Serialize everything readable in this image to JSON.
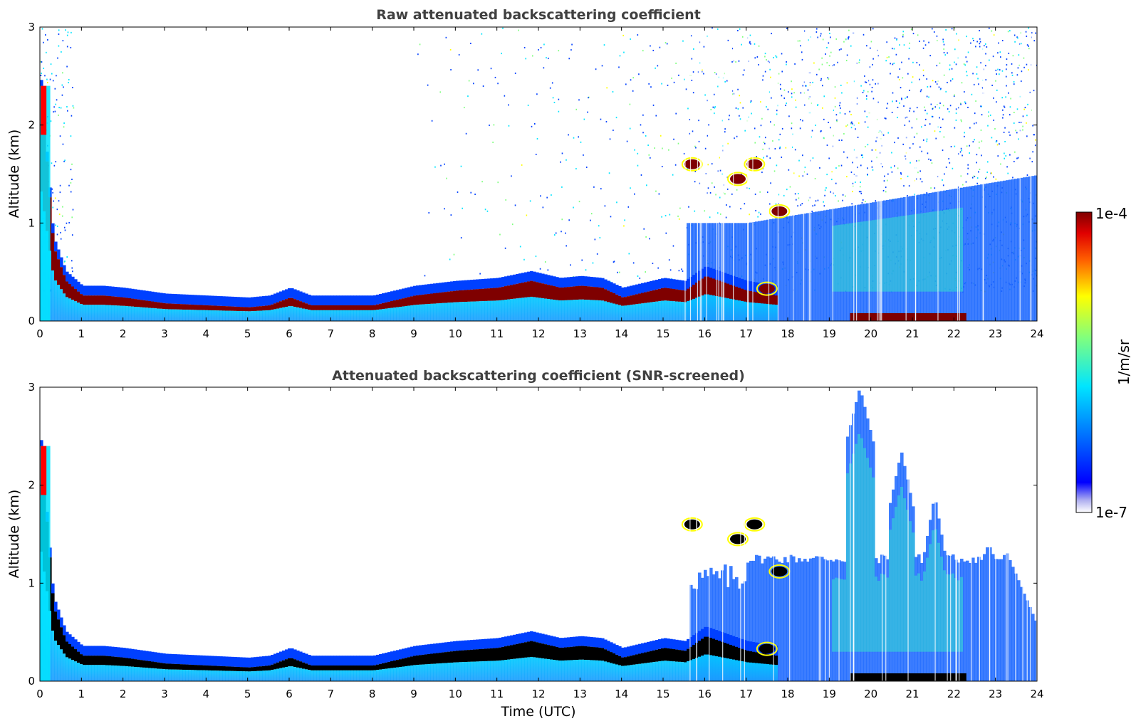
{
  "chart_data": [
    {
      "type": "heatmap",
      "title": "Raw attenuated backscattering coefficient",
      "xlabel": "",
      "ylabel": "Altitude (km)",
      "xlim": [
        0,
        24
      ],
      "ylim": [
        0,
        3
      ],
      "xticks": [
        "0",
        "1",
        "2",
        "3",
        "4",
        "5",
        "6",
        "7",
        "8",
        "9",
        "10",
        "11",
        "12",
        "13",
        "14",
        "15",
        "16",
        "17",
        "18",
        "19",
        "20",
        "21",
        "22",
        "23",
        "24"
      ],
      "yticks": [
        "0",
        "1",
        "2",
        "3"
      ],
      "boundary_layer_top_km": [
        [
          0,
          2.4
        ],
        [
          0.3,
          0.8
        ],
        [
          0.6,
          0.45
        ],
        [
          1,
          0.3
        ],
        [
          1.5,
          0.3
        ],
        [
          2,
          0.28
        ],
        [
          3,
          0.22
        ],
        [
          4,
          0.2
        ],
        [
          5,
          0.18
        ],
        [
          5.5,
          0.2
        ],
        [
          6,
          0.28
        ],
        [
          6.5,
          0.2
        ],
        [
          7,
          0.2
        ],
        [
          8,
          0.2
        ],
        [
          9,
          0.3
        ],
        [
          10,
          0.35
        ],
        [
          11,
          0.38
        ],
        [
          11.8,
          0.45
        ],
        [
          12.5,
          0.38
        ],
        [
          13,
          0.4
        ],
        [
          13.5,
          0.38
        ],
        [
          14,
          0.28
        ],
        [
          14.5,
          0.33
        ],
        [
          15,
          0.38
        ],
        [
          15.5,
          0.35
        ],
        [
          16,
          0.5
        ],
        [
          17,
          0.35
        ],
        [
          17.7,
          0.3
        ]
      ],
      "elevated_layers_km": [
        {
          "x": 15.7,
          "y": 1.6
        },
        {
          "x": 17.2,
          "y": 1.6
        },
        {
          "x": 17.8,
          "y": 1.12
        },
        {
          "x": 16.8,
          "y": 1.45
        },
        {
          "x": 17.5,
          "y": 0.33
        }
      ],
      "surface_layer": {
        "x_start": 19.5,
        "x_end": 22.3,
        "top_km": 0.08
      }
    },
    {
      "type": "heatmap",
      "title": "Attenuated backscattering coefficient (SNR-screened)",
      "xlabel": "Time (UTC)",
      "ylabel": "Altitude (km)",
      "xlim": [
        0,
        24
      ],
      "ylim": [
        0,
        3
      ],
      "xticks": [
        "0",
        "1",
        "2",
        "3",
        "4",
        "5",
        "6",
        "7",
        "8",
        "9",
        "10",
        "11",
        "12",
        "13",
        "14",
        "15",
        "16",
        "17",
        "18",
        "19",
        "20",
        "21",
        "22",
        "23",
        "24"
      ],
      "yticks": [
        "0",
        "1",
        "2",
        "3"
      ],
      "aerosol_plumes_top_km": [
        {
          "x": 19.7,
          "top": 3.0,
          "width": 0.7
        },
        {
          "x": 20.7,
          "top": 2.35,
          "width": 0.6
        },
        {
          "x": 21.5,
          "top": 1.9,
          "width": 0.5
        },
        {
          "x": 22.8,
          "top": 1.4,
          "width": 1.2
        }
      ]
    }
  ],
  "colorbar": {
    "label": "1/m/sr",
    "max_label": "1e-4",
    "min_label": "1e-7",
    "scale": "log",
    "colormap": "jet"
  },
  "colors": {
    "dark_red": "#7f0000",
    "red": "#ff0000",
    "yellow": "#ffff00",
    "green": "#7fff7f",
    "cyan": "#00e5ff",
    "blue": "#0040ff",
    "navy": "#00008f"
  }
}
